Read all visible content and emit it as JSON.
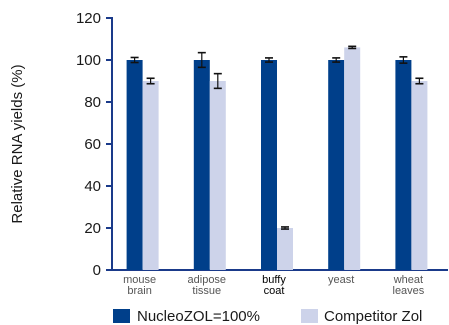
{
  "chart_data": {
    "type": "bar",
    "ylabel": "Relative RNA yields (%)",
    "ylim": [
      0,
      120
    ],
    "yticks": [
      0,
      20,
      40,
      60,
      80,
      100,
      120
    ],
    "categories": [
      {
        "lines": [
          "mouse",
          "brain"
        ],
        "highlight": false
      },
      {
        "lines": [
          "adipose",
          "tissue"
        ],
        "highlight": false
      },
      {
        "lines": [
          "buffy",
          "coat"
        ],
        "highlight": true
      },
      {
        "lines": [
          "yeast"
        ],
        "highlight": false
      },
      {
        "lines": [
          "wheat",
          "leaves"
        ],
        "highlight": false
      }
    ],
    "series": [
      {
        "name": "NucleoZOL=100%",
        "color": "#003f8a",
        "values": [
          100,
          100,
          100,
          100,
          100
        ],
        "errors": [
          1.2,
          3.5,
          1.0,
          1.0,
          1.5
        ]
      },
      {
        "name": "Competitor Zol",
        "color": "#cdd3ea",
        "values": [
          90,
          90,
          20,
          106,
          90
        ],
        "errors": [
          1.3,
          3.5,
          0.5,
          0.5,
          1.3
        ]
      }
    ],
    "legend": "bottom",
    "grid": false
  }
}
